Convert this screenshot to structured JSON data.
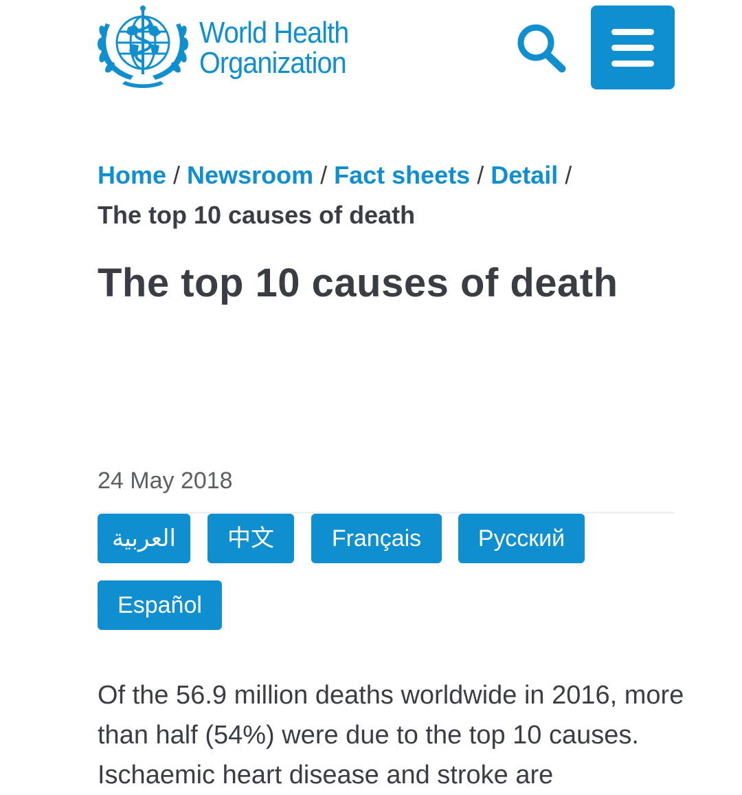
{
  "header": {
    "logo_line1": "World Health",
    "logo_line2": "Organization",
    "search_icon": "search-icon",
    "menu_icon": "hamburger-menu-icon",
    "brand_color": "#0f8fd0"
  },
  "breadcrumb": {
    "items": [
      "Home",
      "Newsroom",
      "Fact sheets",
      "Detail"
    ],
    "separator": "/",
    "current": "The top 10 causes of death"
  },
  "article": {
    "title": "The top 10 causes of death",
    "date": "24 May 2018",
    "languages": [
      "العربية",
      "中文",
      "Français",
      "Русский",
      "Español"
    ],
    "intro": "Of the 56.9 million deaths worldwide in 2016, more than half (54%) were due to the top 10 causes. Ischaemic heart disease and stroke are"
  }
}
